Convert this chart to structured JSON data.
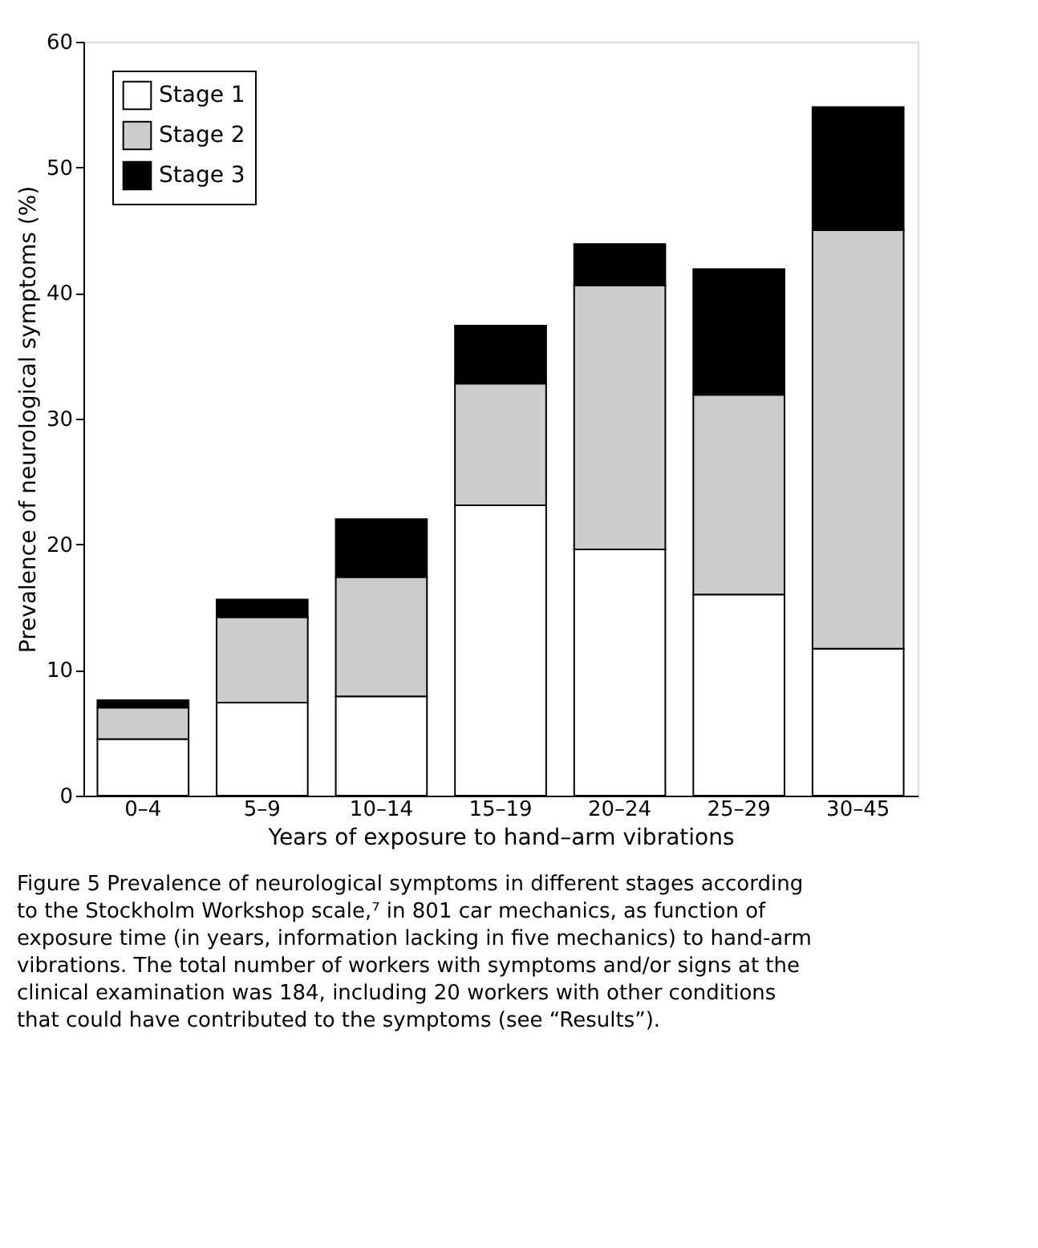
{
  "chart_data": {
    "type": "bar",
    "stacked": true,
    "xlabel": "Years of exposure to hand–arm vibrations",
    "ylabel": "Prevalence of neurological symptoms (%)",
    "categories": [
      "0–4",
      "5–9",
      "10–14",
      "15–19",
      "20–24",
      "25–29",
      "30–45"
    ],
    "series": [
      {
        "name": "Stage 1",
        "color": "#ffffff",
        "values": [
          4.5,
          7.4,
          7.9,
          23.1,
          19.6,
          16.0,
          11.7
        ]
      },
      {
        "name": "Stage 2",
        "color": "#cccccc",
        "values": [
          2.5,
          6.8,
          9.5,
          9.7,
          21.0,
          15.9,
          33.3
        ]
      },
      {
        "name": "Stage 3",
        "color": "#000000",
        "values": [
          0.6,
          1.4,
          4.6,
          4.6,
          3.3,
          10.0,
          9.8
        ]
      }
    ],
    "ylim": [
      0,
      60
    ],
    "yticks": [
      0,
      10,
      20,
      30,
      40,
      50,
      60
    ],
    "grid": false,
    "legend": "top left",
    "annotations": [
      "Figure 5   Prevalence of neurological symptoms in different stages according to the Stockholm Workshop scale,⁷ in 801 car mechanics, as function of exposure time (in years, information lacking in five mechanics) to hand-arm vibrations. The total number of workers with symptoms and/or signs at the clinical examination was 184, including 20 workers with other conditions that could have contributed to the symptoms (see “Results”)."
    ]
  }
}
